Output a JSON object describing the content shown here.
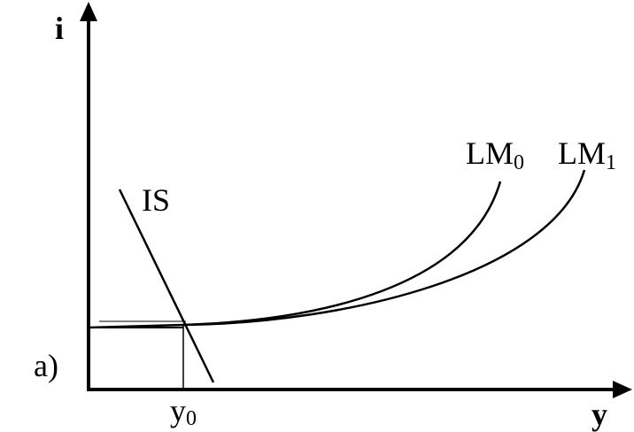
{
  "axes": {
    "y_label": "i",
    "x_label": "y"
  },
  "is_curve": {
    "label": "IS"
  },
  "lm_curves": [
    {
      "label": "LM",
      "subscript": "0"
    },
    {
      "label": "LM",
      "subscript": "1"
    }
  ],
  "equilibrium": {
    "label": "y",
    "subscript": "0"
  },
  "panel_label": "a)"
}
